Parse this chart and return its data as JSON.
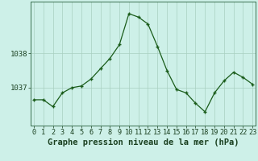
{
  "hours": [
    0,
    1,
    2,
    3,
    4,
    5,
    6,
    7,
    8,
    9,
    10,
    11,
    12,
    13,
    14,
    15,
    16,
    17,
    18,
    19,
    20,
    21,
    22,
    23
  ],
  "pressure": [
    1036.65,
    1036.65,
    1036.45,
    1036.85,
    1037.0,
    1037.05,
    1037.25,
    1037.55,
    1037.85,
    1038.25,
    1039.15,
    1039.05,
    1038.85,
    1038.2,
    1037.5,
    1036.95,
    1036.85,
    1036.55,
    1036.3,
    1036.85,
    1037.2,
    1037.45,
    1037.3,
    1037.1
  ],
  "yticks": [
    1037,
    1038
  ],
  "ylim": [
    1035.9,
    1039.5
  ],
  "xlim": [
    -0.3,
    23.3
  ],
  "line_color": "#1a5c1a",
  "marker_color": "#1a5c1a",
  "bg_color": "#cdf0e8",
  "grid_color": "#a8cfc0",
  "border_color": "#3a7050",
  "xlabel": "Graphe pression niveau de la mer (hPa)",
  "xlabel_fontsize": 7.5,
  "tick_fontsize": 6.2,
  "ytick_fontsize": 6.5
}
